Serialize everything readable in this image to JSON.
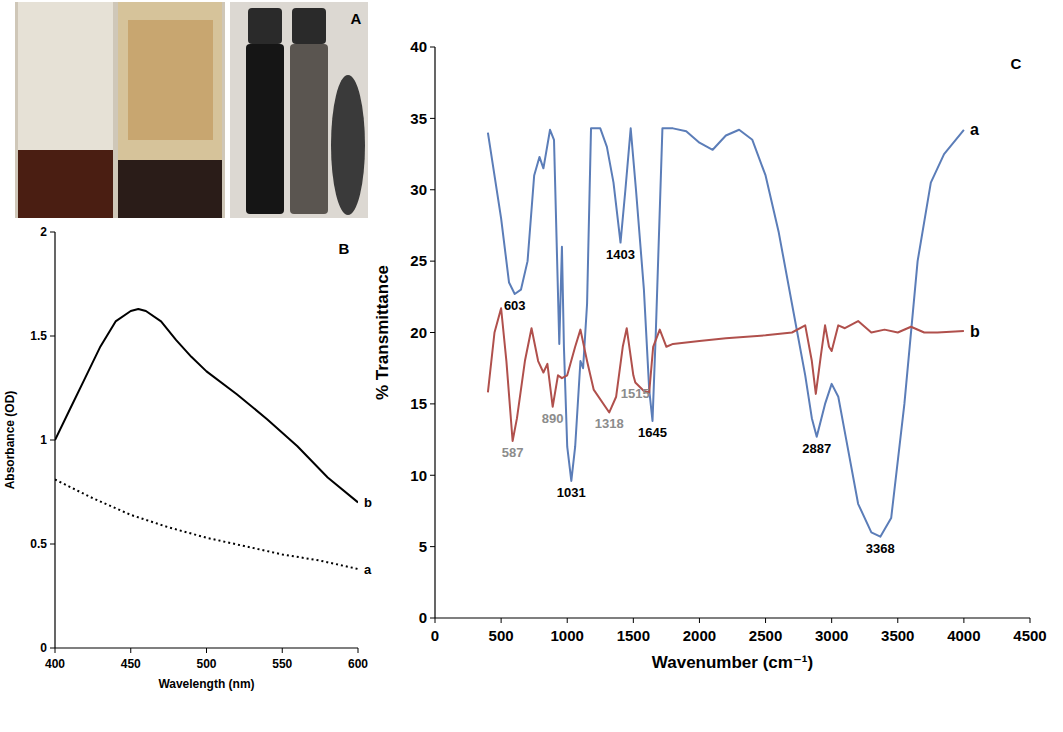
{
  "photo_panel": {
    "panel_label": "A"
  },
  "chart_data": [
    {
      "type": "line",
      "panel_label": "B",
      "x_label": "Wavelength (nm)",
      "y_label": "Absorbance (OD)",
      "xlim": [
        400,
        600
      ],
      "xticks": [
        400,
        450,
        500,
        550,
        600
      ],
      "ylim": [
        0,
        2
      ],
      "yticks": [
        0,
        0.5,
        1,
        1.5,
        2
      ],
      "grid": false,
      "series": [
        {
          "name": "a",
          "color": "#000000",
          "line_style": "dotted",
          "x": [
            400,
            425,
            450,
            475,
            500,
            525,
            550,
            575,
            600
          ],
          "values": [
            0.81,
            0.72,
            0.64,
            0.58,
            0.53,
            0.49,
            0.45,
            0.42,
            0.38
          ]
        },
        {
          "name": "b",
          "color": "#000000",
          "line_style": "solid",
          "x": [
            400,
            410,
            420,
            430,
            440,
            450,
            455,
            460,
            470,
            480,
            490,
            500,
            520,
            540,
            560,
            580,
            600
          ],
          "values": [
            1.0,
            1.15,
            1.3,
            1.45,
            1.57,
            1.62,
            1.63,
            1.62,
            1.57,
            1.48,
            1.4,
            1.33,
            1.22,
            1.1,
            0.97,
            0.82,
            0.7
          ]
        }
      ]
    },
    {
      "type": "line",
      "panel_label": "C",
      "x_label": "Wavenumber  (cm⁻¹)",
      "y_label": "% Transmittance",
      "xlim": [
        0,
        4500
      ],
      "xticks": [
        0,
        500,
        1000,
        1500,
        2000,
        2500,
        3000,
        3500,
        4000,
        4500
      ],
      "ylim": [
        0,
        40
      ],
      "yticks": [
        0,
        5,
        10,
        15,
        20,
        25,
        30,
        35,
        40
      ],
      "grid": false,
      "series": [
        {
          "name": "a",
          "color": "#5b7db8",
          "line_style": "solid",
          "x": [
            400,
            500,
            560,
            603,
            650,
            700,
            750,
            790,
            820,
            870,
            900,
            940,
            960,
            975,
            1000,
            1031,
            1060,
            1100,
            1120,
            1150,
            1180,
            1250,
            1300,
            1350,
            1403,
            1440,
            1480,
            1520,
            1580,
            1620,
            1645,
            1670,
            1720,
            1800,
            1900,
            2000,
            2100,
            2200,
            2300,
            2400,
            2500,
            2600,
            2700,
            2800,
            2850,
            2887,
            2950,
            3000,
            3050,
            3100,
            3200,
            3300,
            3368,
            3450,
            3550,
            3650,
            3750,
            3850,
            4000
          ],
          "values": [
            34,
            28,
            23.5,
            22.7,
            23,
            25,
            31,
            32.3,
            31.5,
            34.2,
            33.5,
            19.2,
            26,
            19,
            12,
            9.6,
            12,
            18,
            17.5,
            22,
            34.3,
            34.3,
            33,
            30.5,
            26.3,
            30,
            34.3,
            30,
            23,
            16,
            13.8,
            20,
            34.3,
            34.3,
            34.1,
            33.3,
            32.8,
            33.8,
            34.2,
            33.5,
            31,
            27,
            22,
            17,
            14,
            12.7,
            15,
            16.4,
            15.5,
            13,
            8,
            6,
            5.7,
            7,
            15,
            25,
            30.5,
            32.5,
            34.2
          ]
        },
        {
          "name": "b",
          "color": "#b0504c",
          "line_style": "solid",
          "x": [
            400,
            450,
            500,
            540,
            587,
            620,
            680,
            730,
            780,
            820,
            850,
            890,
            930,
            960,
            1000,
            1060,
            1100,
            1150,
            1200,
            1318,
            1370,
            1420,
            1450,
            1500,
            1515,
            1580,
            1620,
            1650,
            1700,
            1750,
            1800,
            2000,
            2200,
            2500,
            2700,
            2800,
            2850,
            2880,
            2920,
            2950,
            2980,
            3000,
            3050,
            3100,
            3200,
            3300,
            3400,
            3500,
            3600,
            3700,
            3800,
            4000
          ],
          "values": [
            15.8,
            20,
            21.7,
            18,
            12.4,
            14,
            18,
            20.3,
            18,
            17.2,
            17.8,
            14.8,
            17,
            16.8,
            17,
            19,
            20.2,
            18,
            16,
            14.4,
            15.5,
            19,
            20.3,
            17,
            16.5,
            15.9,
            15.8,
            19,
            20.2,
            19,
            19.2,
            19.4,
            19.6,
            19.8,
            20,
            20.5,
            18,
            15.7,
            18.5,
            20.5,
            19,
            18.7,
            20.5,
            20.3,
            20.8,
            20,
            20.2,
            20,
            20.4,
            20,
            20,
            20.1
          ]
        }
      ],
      "annotations": [
        {
          "text": "603",
          "x": 603,
          "y": 22.7,
          "color": "#000000"
        },
        {
          "text": "1031",
          "x": 1031,
          "y": 9.6,
          "color": "#000000"
        },
        {
          "text": "1403",
          "x": 1403,
          "y": 26.3,
          "color": "#000000"
        },
        {
          "text": "1645",
          "x": 1645,
          "y": 13.8,
          "color": "#000000"
        },
        {
          "text": "2887",
          "x": 2887,
          "y": 12.7,
          "color": "#000000"
        },
        {
          "text": "3368",
          "x": 3368,
          "y": 5.7,
          "color": "#000000"
        },
        {
          "text": "587",
          "x": 587,
          "y": 12.4,
          "color": "#8c8c8c"
        },
        {
          "text": "890",
          "x": 890,
          "y": 14.8,
          "color": "#8c8c8c"
        },
        {
          "text": "1318",
          "x": 1318,
          "y": 14.4,
          "color": "#8c8c8c"
        },
        {
          "text": "1515",
          "x": 1515,
          "y": 16.5,
          "color": "#8c8c8c"
        }
      ]
    }
  ]
}
